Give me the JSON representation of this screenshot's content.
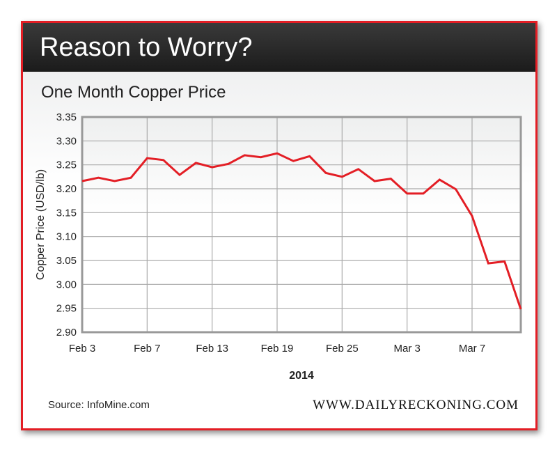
{
  "header": {
    "title": "Reason to Worry?"
  },
  "chart_data": {
    "type": "line",
    "title": "One Month Copper Price",
    "xlabel": "2014",
    "ylabel": "Copper Price (USD/lb)",
    "ylim": [
      2.9,
      3.35
    ],
    "yticks": [
      "3.35",
      "3.30",
      "3.25",
      "3.20",
      "3.15",
      "3.10",
      "3.05",
      "3.00",
      "2.95",
      "2.90"
    ],
    "xtick_labels": [
      "Feb 3",
      "Feb 7",
      "Feb 13",
      "Feb 19",
      "Feb 25",
      "Mar 3",
      "Mar 7"
    ],
    "xtick_indices": [
      0,
      4,
      8,
      12,
      16,
      20,
      24
    ],
    "grid": true,
    "line_color": "#e31e25",
    "values": [
      3.216,
      3.223,
      3.216,
      3.223,
      3.264,
      3.26,
      3.229,
      3.254,
      3.245,
      3.252,
      3.27,
      3.266,
      3.274,
      3.258,
      3.268,
      3.233,
      3.225,
      3.241,
      3.216,
      3.221,
      3.19,
      3.19,
      3.219,
      3.199,
      3.143,
      3.044,
      3.048,
      2.948
    ]
  },
  "footer": {
    "source": "Source: InfoMine.com",
    "brand": "WWW.DAILYRECKONING.COM"
  }
}
